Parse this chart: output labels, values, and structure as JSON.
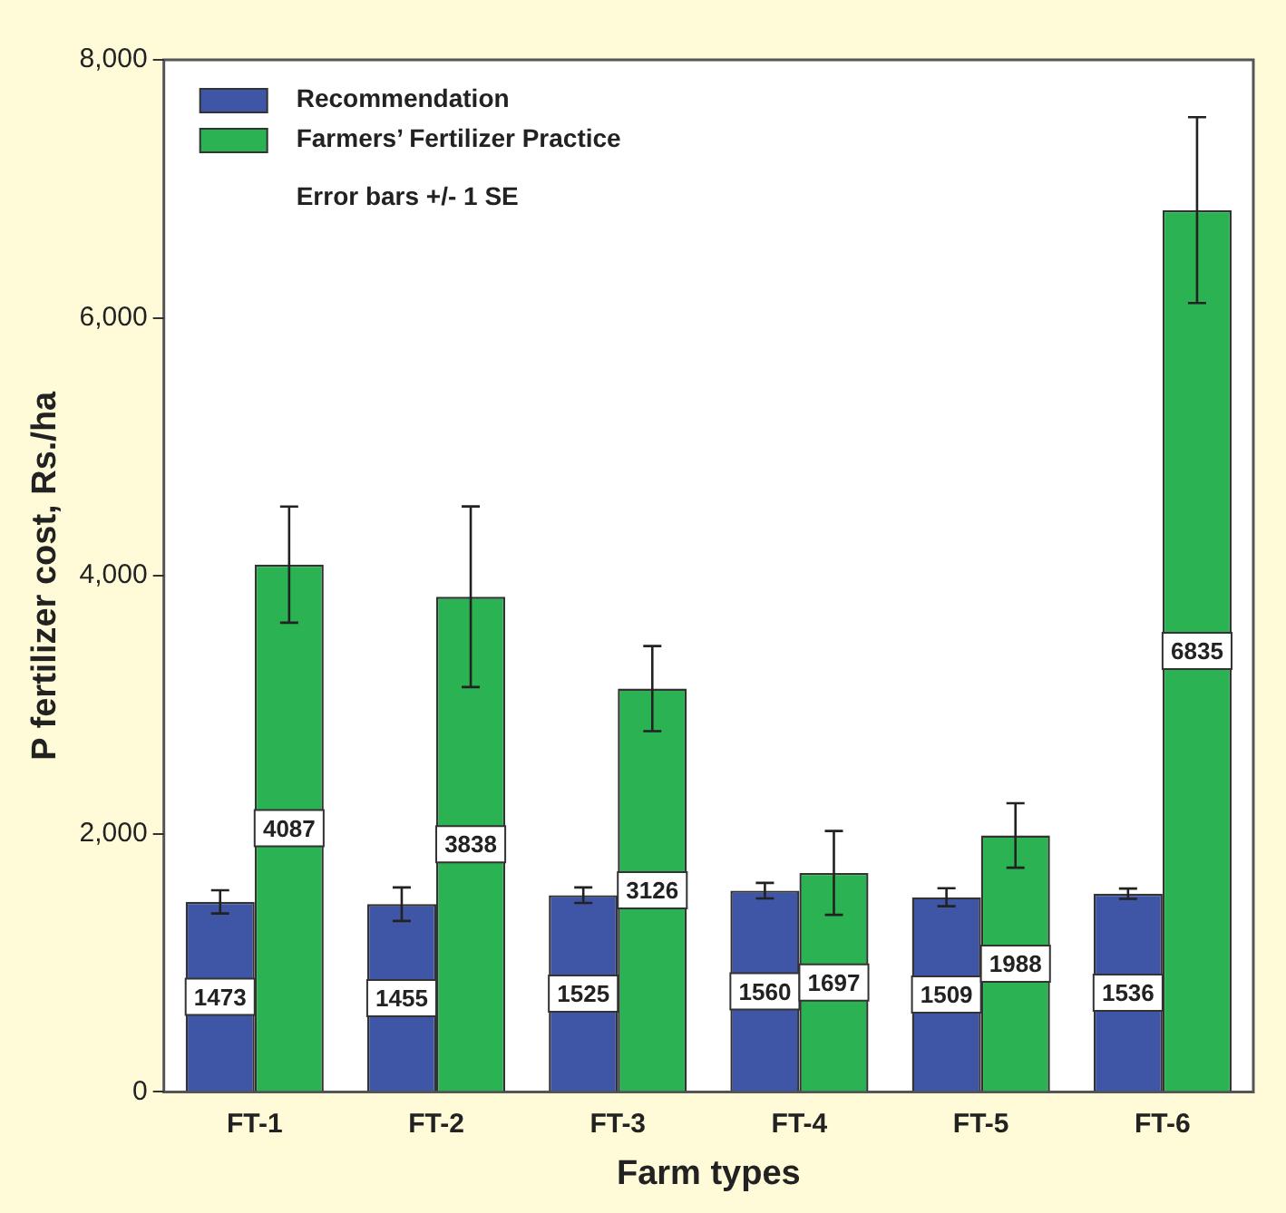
{
  "chart_data": {
    "type": "bar",
    "xlabel": "Farm types",
    "ylabel": "P fertilizer cost, Rs./ha",
    "categories": [
      "FT-1",
      "FT-2",
      "FT-3",
      "FT-4",
      "FT-5",
      "FT-6"
    ],
    "series": [
      {
        "name": "Recommendation",
        "color": "#3f56a6",
        "values": [
          1473,
          1455,
          1525,
          1560,
          1509,
          1536
        ],
        "errors": [
          90,
          130,
          60,
          60,
          70,
          40
        ]
      },
      {
        "name": "Farmers’ Fertilizer Practice",
        "color": "#2bb353",
        "values": [
          4087,
          3838,
          3126,
          1697,
          1988,
          6835
        ],
        "errors": [
          450,
          700,
          330,
          325,
          250,
          720
        ]
      }
    ],
    "ylim": [
      0,
      8000
    ],
    "yticks": [
      {
        "value": 0,
        "label": "0"
      },
      {
        "value": 2000,
        "label": "2,000"
      },
      {
        "value": 4000,
        "label": "4,000"
      },
      {
        "value": 6000,
        "label": "6,000"
      },
      {
        "value": 8000,
        "label": "8,000"
      }
    ],
    "grid": false,
    "legend": "top left",
    "data_labels": true,
    "annotations": [
      "Error bars +/- 1 SE"
    ]
  }
}
